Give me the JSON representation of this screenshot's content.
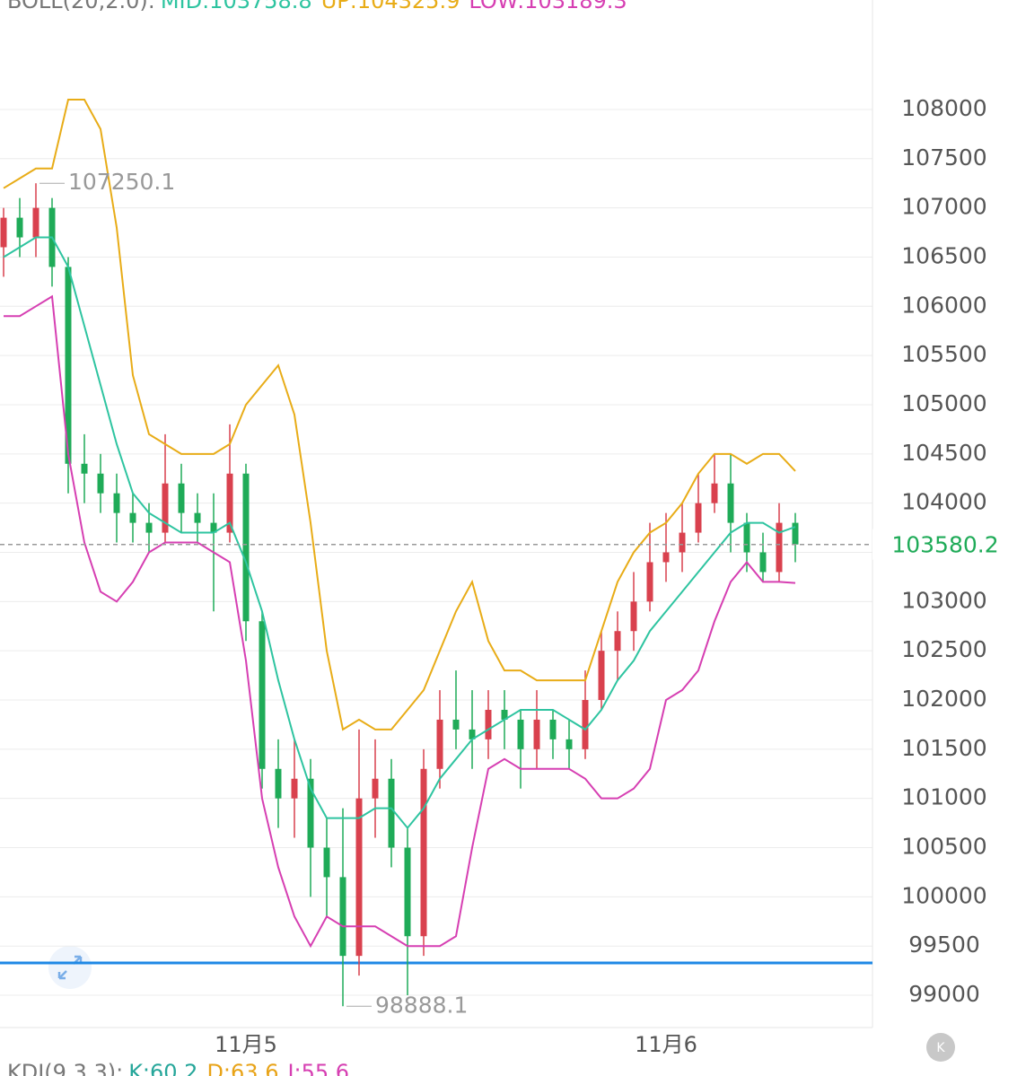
{
  "chart_data": {
    "type": "candlestick",
    "indicator": "BOLL(20,2.0):",
    "bottom_indicator": "KDJ(9,3,3):",
    "bottom_legend": [
      {
        "label": "K:60.2",
        "color": "#26a69a"
      },
      {
        "label": "D:63.6",
        "color": "#e8a317"
      },
      {
        "label": "J:55.6",
        "color": "#d63fb2"
      }
    ],
    "categories": [
      null,
      null,
      null,
      null,
      null,
      null,
      null,
      null,
      null,
      null,
      null,
      null,
      null,
      null,
      null,
      "11月5",
      null,
      null,
      null,
      null,
      null,
      null,
      null,
      null,
      null,
      null,
      null,
      null,
      null,
      null,
      null,
      null,
      null,
      null,
      null,
      null,
      null,
      null,
      null,
      null,
      null,
      "11月6",
      null,
      null,
      null,
      null,
      null,
      null,
      null,
      null
    ],
    "ohlc": [
      [
        106600,
        107000,
        106300,
        106900
      ],
      [
        106900,
        107100,
        106500,
        106700
      ],
      [
        106700,
        107250.1,
        106500,
        107000
      ],
      [
        107000,
        107100,
        106200,
        106400
      ],
      [
        106400,
        106500,
        104100,
        104400
      ],
      [
        104400,
        104700,
        104000,
        104300
      ],
      [
        104300,
        104500,
        103900,
        104100
      ],
      [
        104100,
        104300,
        103600,
        103900
      ],
      [
        103900,
        104100,
        103600,
        103800
      ],
      [
        103800,
        104000,
        103500,
        103700
      ],
      [
        103700,
        104700,
        103600,
        104200
      ],
      [
        104200,
        104400,
        103700,
        103900
      ],
      [
        103900,
        104100,
        103600,
        103800
      ],
      [
        103800,
        104100,
        102900,
        103700
      ],
      [
        103700,
        104800,
        103600,
        104300
      ],
      [
        104300,
        104400,
        102600,
        102800
      ],
      [
        102800,
        102900,
        101100,
        101300
      ],
      [
        101300,
        101600,
        100700,
        101000
      ],
      [
        101000,
        101600,
        100600,
        101200
      ],
      [
        101200,
        101400,
        100000,
        100500
      ],
      [
        100500,
        100800,
        99800,
        100200
      ],
      [
        100200,
        100900,
        98888.1,
        99400
      ],
      [
        99400,
        101700,
        99200,
        101000
      ],
      [
        101000,
        101600,
        100600,
        101200
      ],
      [
        101200,
        101400,
        100300,
        100500
      ],
      [
        100500,
        100700,
        99000,
        99600
      ],
      [
        99600,
        101500,
        99400,
        101300
      ],
      [
        101300,
        102100,
        101100,
        101800
      ],
      [
        101800,
        102300,
        101500,
        101700
      ],
      [
        101700,
        102100,
        101300,
        101600
      ],
      [
        101600,
        102100,
        101400,
        101900
      ],
      [
        101900,
        102100,
        101500,
        101800
      ],
      [
        101800,
        101900,
        101100,
        101500
      ],
      [
        101500,
        102100,
        101300,
        101800
      ],
      [
        101800,
        101900,
        101400,
        101600
      ],
      [
        101600,
        101800,
        101300,
        101500
      ],
      [
        101500,
        102300,
        101400,
        102000
      ],
      [
        102000,
        102700,
        101900,
        102500
      ],
      [
        102500,
        102900,
        102200,
        102700
      ],
      [
        102700,
        103300,
        102500,
        103000
      ],
      [
        103000,
        103800,
        102900,
        103400
      ],
      [
        103400,
        103900,
        103200,
        103500
      ],
      [
        103500,
        104000,
        103300,
        103700
      ],
      [
        103700,
        104300,
        103600,
        104000
      ],
      [
        104000,
        104500,
        103900,
        104200
      ],
      [
        104200,
        104500,
        103500,
        103800
      ],
      [
        103800,
        103900,
        103300,
        103500
      ],
      [
        103500,
        103700,
        103200,
        103300
      ],
      [
        103300,
        104000,
        103200,
        103800
      ],
      [
        103800,
        103900,
        103400,
        103580.2
      ]
    ],
    "up_color": "#d9414e",
    "down_color": "#1fab58",
    "series": [
      {
        "name": "MID:103758.8",
        "color": "#2ec4a0",
        "values": [
          106500,
          106600,
          106700,
          106700,
          106400,
          105800,
          105200,
          104600,
          104100,
          103900,
          103800,
          103700,
          103700,
          103700,
          103800,
          103400,
          102900,
          102200,
          101600,
          101100,
          100800,
          100800,
          100800,
          100900,
          100900,
          100700,
          100900,
          101200,
          101400,
          101600,
          101700,
          101800,
          101900,
          101900,
          101900,
          101800,
          101700,
          101900,
          102200,
          102400,
          102700,
          102900,
          103100,
          103300,
          103500,
          103700,
          103800,
          103800,
          103700,
          103758.8
        ]
      },
      {
        "name": "UP:104325.9",
        "color": "#e8ac17",
        "values": [
          107200,
          107300,
          107400,
          107400,
          108100,
          108100,
          107800,
          106800,
          105300,
          104700,
          104600,
          104500,
          104500,
          104500,
          104600,
          105000,
          105200,
          105400,
          104900,
          103800,
          102500,
          101700,
          101800,
          101700,
          101700,
          101900,
          102100,
          102500,
          102900,
          103200,
          102600,
          102300,
          102300,
          102200,
          102200,
          102200,
          102200,
          102700,
          103200,
          103500,
          103700,
          103800,
          104000,
          104300,
          104500,
          104500,
          104400,
          104500,
          104500,
          104325.9
        ]
      },
      {
        "name": "LOW:103189.3",
        "color": "#d63fb2",
        "values": [
          105900,
          105900,
          106000,
          106100,
          104500,
          103600,
          103100,
          103000,
          103200,
          103500,
          103600,
          103600,
          103600,
          103500,
          103400,
          102400,
          101000,
          100300,
          99800,
          99500,
          99800,
          99700,
          99700,
          99700,
          99600,
          99500,
          99500,
          99500,
          99600,
          100500,
          101300,
          101400,
          101300,
          101300,
          101300,
          101300,
          101200,
          101000,
          101000,
          101100,
          101300,
          102000,
          102100,
          102300,
          102800,
          103200,
          103400,
          103200,
          103200,
          103189.3
        ]
      }
    ],
    "hline": {
      "value": 99328,
      "color": "#1e88e5"
    },
    "ylim": [
      98672,
      109112
    ],
    "yticks": [
      99000,
      99500,
      100000,
      100500,
      101000,
      101500,
      102000,
      102500,
      103000,
      103500,
      104000,
      104500,
      105000,
      105500,
      106000,
      106500,
      107000,
      107500,
      108000
    ],
    "grid": true,
    "corner_icon": "K"
  }
}
